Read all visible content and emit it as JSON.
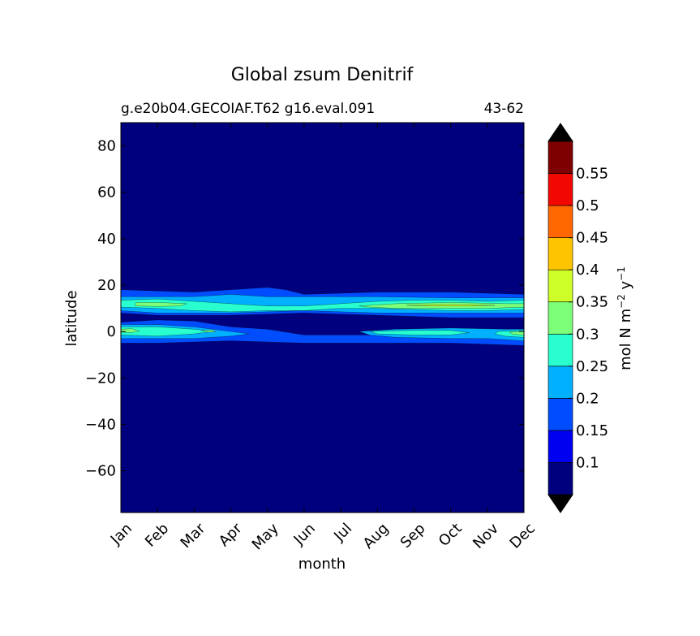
{
  "chart_data": {
    "type": "heatmap",
    "title": "Global zsum Denitrif",
    "subtitle_left": "g.e20b04.GECOIAF.T62 g16.eval.091",
    "subtitle_right": "43-62",
    "xlabel": "month",
    "ylabel": "latitude",
    "x_categories": [
      "Jan",
      "Feb",
      "Mar",
      "Apr",
      "May",
      "Jun",
      "Jul",
      "Aug",
      "Sep",
      "Oct",
      "Nov",
      "Dec"
    ],
    "xlim": [
      0,
      11
    ],
    "ylim": [
      -78,
      90
    ],
    "y_ticks": [
      -60,
      -40,
      -20,
      0,
      20,
      40,
      60,
      80
    ],
    "y_tick_labels": [
      "−60",
      "−40",
      "−20",
      "0",
      "20",
      "40",
      "60",
      "80"
    ],
    "colorbar": {
      "label_prefix": "mol N m",
      "label_exp1": "−2",
      "label_mid": " y",
      "label_exp2": "−1",
      "levels": [
        0.05,
        0.1,
        0.15,
        0.2,
        0.25,
        0.3,
        0.35,
        0.4,
        0.45,
        0.5,
        0.55,
        0.6
      ],
      "tick_values": [
        0.1,
        0.15,
        0.2,
        0.25,
        0.3,
        0.35,
        0.4,
        0.45,
        0.5,
        0.55
      ],
      "tick_labels": [
        "0.1",
        "0.15",
        "0.2",
        "0.25",
        "0.3",
        "0.35",
        "0.4",
        "0.45",
        "0.5",
        "0.55"
      ],
      "colors": [
        "#00007f",
        "#0000f1",
        "#004cff",
        "#00b0ff",
        "#29ffce",
        "#7dff7a",
        "#ceff29",
        "#ffc400",
        "#ff6800",
        "#f10800",
        "#7f0000"
      ],
      "extend_low_color": "#000000",
      "extend_high_color": "#000000"
    },
    "bands": [
      {
        "name": "north",
        "level": 0.15,
        "points": [
          [
            0,
            18
          ],
          [
            2,
            17
          ],
          [
            4,
            19
          ],
          [
            4.5,
            18
          ],
          [
            5,
            16
          ],
          [
            7,
            17
          ],
          [
            9,
            17
          ],
          [
            11,
            16
          ],
          [
            11,
            6
          ],
          [
            9,
            6
          ],
          [
            7,
            7
          ],
          [
            5,
            8
          ],
          [
            3,
            7
          ],
          [
            1,
            7
          ],
          [
            0,
            8
          ]
        ]
      },
      {
        "name": "north",
        "level": 0.2,
        "points": [
          [
            0,
            15
          ],
          [
            1,
            15
          ],
          [
            2,
            15
          ],
          [
            3,
            16
          ],
          [
            4,
            15
          ],
          [
            5,
            15
          ],
          [
            7,
            15
          ],
          [
            9,
            14.5
          ],
          [
            11,
            14.5
          ],
          [
            11,
            8
          ],
          [
            9,
            8
          ],
          [
            7,
            8
          ],
          [
            5,
            9
          ],
          [
            3,
            8
          ],
          [
            1,
            8
          ],
          [
            0,
            9
          ]
        ]
      },
      {
        "name": "north",
        "level": 0.25,
        "points": [
          [
            0,
            13.5
          ],
          [
            1,
            14
          ],
          [
            2,
            13
          ],
          [
            3,
            12
          ],
          [
            4,
            11
          ],
          [
            5,
            11
          ],
          [
            6,
            12
          ],
          [
            7,
            13
          ],
          [
            8,
            13.5
          ],
          [
            9,
            13.5
          ],
          [
            10,
            13
          ],
          [
            11,
            13.5
          ],
          [
            11,
            9.5
          ],
          [
            10,
            9
          ],
          [
            9,
            9
          ],
          [
            8,
            9.5
          ],
          [
            7,
            10
          ],
          [
            6,
            10
          ],
          [
            5,
            9
          ],
          [
            4,
            9
          ],
          [
            3,
            8.5
          ],
          [
            2,
            9
          ],
          [
            1,
            10
          ],
          [
            0,
            10.5
          ]
        ]
      },
      {
        "name": "north",
        "level": 0.3,
        "points": [
          [
            0.4,
            12.5
          ],
          [
            1,
            12.5
          ],
          [
            1.8,
            12
          ],
          [
            1.6,
            11
          ],
          [
            1,
            10.8
          ],
          [
            0.4,
            11
          ]
        ]
      },
      {
        "name": "north",
        "level": 0.3,
        "points": [
          [
            6.5,
            11
          ],
          [
            7.5,
            12
          ],
          [
            9,
            12.5
          ],
          [
            10.5,
            12
          ],
          [
            11,
            12
          ],
          [
            11,
            10.5
          ],
          [
            10,
            10
          ],
          [
            9,
            10
          ],
          [
            7.5,
            10
          ],
          [
            6.8,
            10.5
          ]
        ]
      },
      {
        "name": "north",
        "level": 0.35,
        "points": [
          [
            7.8,
            11.3
          ],
          [
            8.5,
            11.6
          ],
          [
            9.5,
            11.6
          ],
          [
            10.2,
            11.3
          ],
          [
            9.5,
            11
          ],
          [
            8.5,
            11
          ]
        ]
      },
      {
        "name": "equator",
        "level": 0.15,
        "points": [
          [
            0,
            4
          ],
          [
            1,
            5
          ],
          [
            2,
            4.5
          ],
          [
            3,
            2
          ],
          [
            4,
            1
          ],
          [
            5,
            -1.5
          ],
          [
            7,
            -1.5
          ],
          [
            8,
            0
          ],
          [
            9,
            -0.5
          ],
          [
            11,
            0
          ],
          [
            11,
            -6
          ],
          [
            9,
            -5
          ],
          [
            7,
            -5
          ],
          [
            5,
            -5
          ],
          [
            3,
            -4
          ],
          [
            1,
            -5
          ],
          [
            0,
            -5
          ]
        ]
      },
      {
        "name": "equator",
        "level": 0.2,
        "points": [
          [
            0,
            3
          ],
          [
            1,
            3
          ],
          [
            2,
            2
          ],
          [
            3,
            0
          ],
          [
            3.5,
            -1
          ],
          [
            3,
            -2
          ],
          [
            2,
            -3
          ],
          [
            1,
            -3
          ],
          [
            0,
            -3
          ]
        ]
      },
      {
        "name": "equator",
        "level": 0.2,
        "points": [
          [
            6.5,
            0
          ],
          [
            7.5,
            1
          ],
          [
            9,
            1.5
          ],
          [
            10.5,
            1
          ],
          [
            11,
            1
          ],
          [
            11,
            -4
          ],
          [
            10,
            -3
          ],
          [
            9,
            -3
          ],
          [
            7.5,
            -2.5
          ],
          [
            6.8,
            -1.5
          ]
        ]
      },
      {
        "name": "equator",
        "level": 0.25,
        "points": [
          [
            0,
            2
          ],
          [
            1,
            2
          ],
          [
            2,
            1
          ],
          [
            2.5,
            0
          ],
          [
            2,
            -1
          ],
          [
            1,
            -2
          ],
          [
            0,
            -1.5
          ]
        ]
      },
      {
        "name": "equator",
        "level": 0.25,
        "points": [
          [
            6.8,
            0
          ],
          [
            8,
            0.5
          ],
          [
            9,
            0.5
          ],
          [
            9.5,
            -0.5
          ],
          [
            9,
            -1.5
          ],
          [
            8,
            -1.5
          ],
          [
            7,
            -1
          ]
        ]
      },
      {
        "name": "equator",
        "level": 0.25,
        "points": [
          [
            10.3,
            0
          ],
          [
            11,
            0.5
          ],
          [
            11,
            -2.5
          ],
          [
            10.5,
            -2
          ],
          [
            10.2,
            -1
          ]
        ]
      },
      {
        "name": "equator",
        "level": 0.3,
        "points": [
          [
            0,
            1
          ],
          [
            0.3,
            1.2
          ],
          [
            0.5,
            0.2
          ],
          [
            0.3,
            -0.4
          ],
          [
            0,
            -0.3
          ]
        ]
      },
      {
        "name": "equator",
        "level": 0.3,
        "points": [
          [
            2.2,
            0.5
          ],
          [
            2.5,
            0.6
          ],
          [
            2.6,
            0.0
          ],
          [
            2.4,
            -0.3
          ]
        ]
      },
      {
        "name": "equator",
        "level": 0.3,
        "points": [
          [
            10.6,
            -0.3
          ],
          [
            11,
            0
          ],
          [
            11,
            -1.5
          ],
          [
            10.7,
            -1.2
          ]
        ]
      }
    ]
  }
}
